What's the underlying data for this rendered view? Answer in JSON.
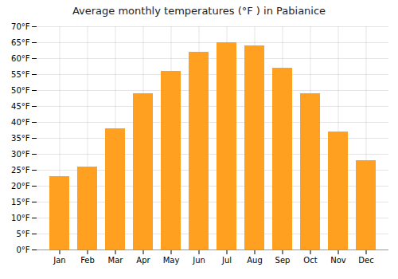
{
  "chart_data": {
    "type": "bar",
    "title": "Average monthly temperatures (°F ) in Pabianice",
    "categories": [
      "Jan",
      "Feb",
      "Mar",
      "Apr",
      "May",
      "Jun",
      "Jul",
      "Aug",
      "Sep",
      "Oct",
      "Nov",
      "Dec"
    ],
    "values": [
      23,
      26,
      38,
      49,
      56,
      62,
      65,
      64,
      57,
      49,
      37,
      28
    ],
    "color": "#FFA020",
    "ylim": [
      0,
      70
    ],
    "yticks": [
      {
        "value": 0,
        "label": "0°F"
      },
      {
        "value": 5,
        "label": "5°F"
      },
      {
        "value": 10,
        "label": "10°F"
      },
      {
        "value": 15,
        "label": "15°F"
      },
      {
        "value": 20,
        "label": "20°F"
      },
      {
        "value": 25,
        "label": "25°F"
      },
      {
        "value": 30,
        "label": "30°F"
      },
      {
        "value": 35,
        "label": "35°F"
      },
      {
        "value": 40,
        "label": "40°F"
      },
      {
        "value": 45,
        "label": "45°F"
      },
      {
        "value": 50,
        "label": "50°F"
      },
      {
        "value": 55,
        "label": "55°F"
      },
      {
        "value": 60,
        "label": "60°F"
      },
      {
        "value": 65,
        "label": "65°F"
      },
      {
        "value": 70,
        "label": "70°F"
      }
    ],
    "grid": true
  }
}
